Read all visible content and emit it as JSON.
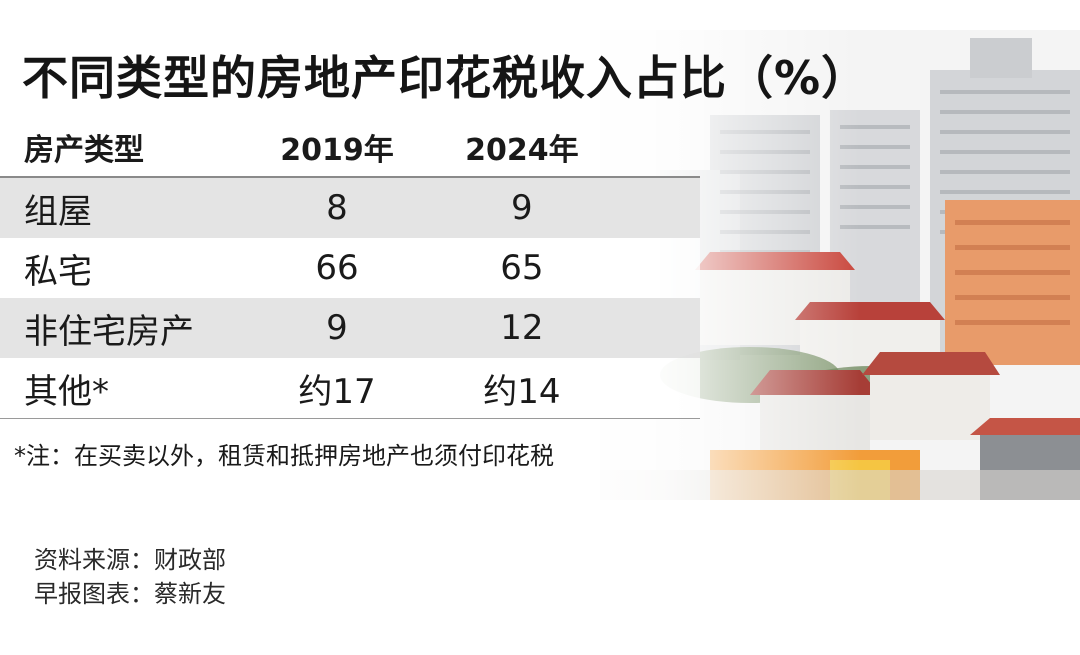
{
  "chart_data": {
    "type": "table",
    "title": "不同类型的房地产印花税收入占比（%）",
    "columns": [
      "房产类型",
      "2019年",
      "2024年"
    ],
    "rows": [
      {
        "category": "组屋",
        "y2019": "8",
        "y2024": "9"
      },
      {
        "category": "私宅",
        "y2019": "66",
        "y2024": "65"
      },
      {
        "category": "非住宅房产",
        "y2019": "9",
        "y2024": "12"
      },
      {
        "category": "其他*",
        "y2019": "约17",
        "y2024": "约14"
      }
    ],
    "note": "*注：在买卖以外，租赁和抵押房地产也须付印花税",
    "source": "资料来源：财政部",
    "credit": "早报图表：蔡新友"
  },
  "colors": {
    "row_shade": "#e2e2e2",
    "text": "#1a1a1a",
    "rule": "#8a8a8a"
  }
}
